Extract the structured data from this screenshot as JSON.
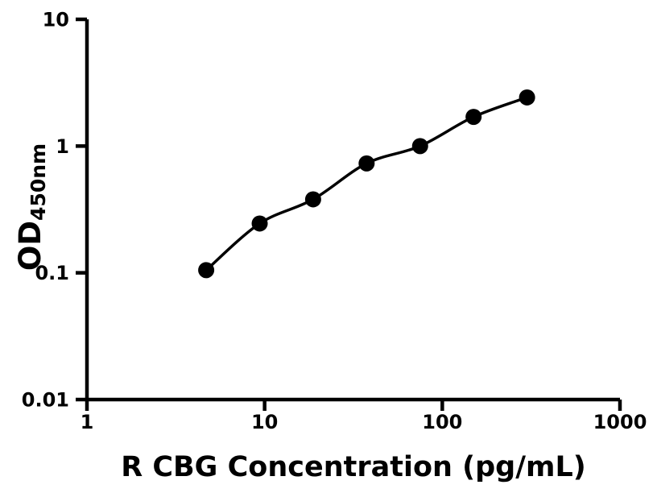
{
  "figure": {
    "ylabel_main": "OD",
    "ylabel_sub": "450nm"
  },
  "colors": {
    "foreground": "#000000",
    "background": "#ffffff"
  },
  "chart_data": {
    "type": "scatter",
    "title": "",
    "xlabel": "R CBG Concentration (pg/mL)",
    "ylabel": "OD450nm",
    "x_scale": "log",
    "y_scale": "log",
    "xlim": [
      1,
      1000
    ],
    "ylim": [
      0.01,
      10
    ],
    "x_ticks": [
      1,
      10,
      100,
      1000
    ],
    "x_tick_labels": [
      "1",
      "10",
      "100",
      "1000"
    ],
    "y_ticks": [
      0.01,
      0.1,
      1,
      10
    ],
    "y_tick_labels": [
      "0.01",
      "0.1",
      "1",
      "10"
    ],
    "grid": false,
    "legend": "none",
    "series": [
      {
        "name": "standard-curve",
        "marker": "filled-circle",
        "line": "smooth-fit",
        "color": "#000000",
        "x": [
          4.69,
          9.38,
          18.75,
          37.5,
          75,
          150,
          300
        ],
        "y": [
          0.105,
          0.245,
          0.38,
          0.73,
          1.0,
          1.7,
          2.42
        ]
      }
    ]
  }
}
